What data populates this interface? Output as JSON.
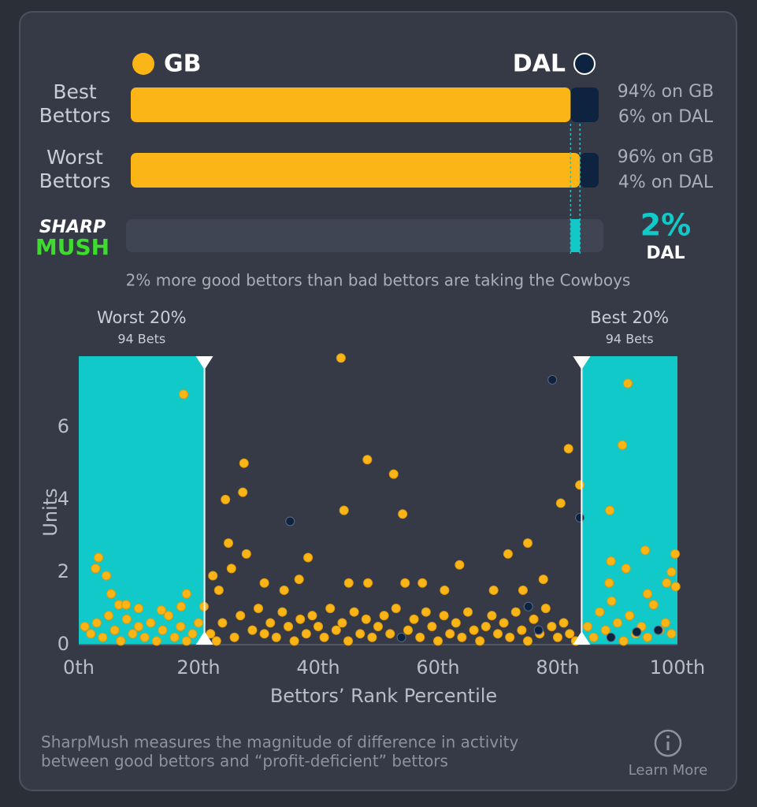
{
  "legend": {
    "left": "GB",
    "right": "DAL",
    "left_color": "#fbb516",
    "right_color": "#0d2340"
  },
  "bars": [
    {
      "label": [
        "Best",
        "Bettors"
      ],
      "values": [
        94,
        6
      ],
      "value_labels": [
        "94% on GB",
        "6% on DAL"
      ]
    },
    {
      "label": [
        "Worst",
        "Bettors"
      ],
      "values": [
        96,
        4
      ],
      "value_labels": [
        "96% on GB",
        "4% on DAL"
      ]
    }
  ],
  "sharpmush": {
    "logo": [
      "SHARP",
      "MUSH"
    ],
    "value": 2,
    "value_label": "2%",
    "team": "DAL",
    "color": "#12c9c9",
    "caption": "2% more good bettors than bad bettors are taking the Cowboys"
  },
  "chart_data": {
    "type": "scatter",
    "xlabel": "Bettors’ Rank Percentile",
    "ylabel": "Units",
    "xlim": [
      0,
      100
    ],
    "ylim": [
      0,
      7.95
    ],
    "xticks": [
      {
        "value": 0,
        "label": "0th"
      },
      {
        "value": 20,
        "label": "20th"
      },
      {
        "value": 40,
        "label": "40th"
      },
      {
        "value": 60,
        "label": "60th"
      },
      {
        "value": 80,
        "label": "80th"
      },
      {
        "value": 100,
        "label": "100th"
      }
    ],
    "yticks": [
      0,
      2,
      4,
      6
    ],
    "regions": [
      {
        "label": "Worst 20%",
        "sublabel": "94 Bets",
        "range": [
          0,
          21
        ],
        "color": "#12c9c9"
      },
      {
        "label": "Best 20%",
        "sublabel": "94 Bets",
        "range": [
          84,
          100
        ],
        "color": "#12c9c9"
      }
    ],
    "series": [
      {
        "name": "GB",
        "color": "#fbb516",
        "x": [
          17.5,
          43.8,
          48.2,
          27.6,
          52.6,
          27.4,
          24.5,
          44.3,
          54.1,
          80.5,
          81.8,
          83.7,
          91.7,
          90.8,
          88.7,
          25,
          75,
          71.7,
          28,
          38.3,
          94.6,
          99.6,
          3.3,
          2.8,
          25.5,
          63.6,
          88.9,
          91.4,
          99,
          4.6,
          22.4,
          18,
          23.4,
          31,
          34.3,
          36.8,
          45.1,
          48.3,
          54.5,
          57.4,
          61.1,
          69.3,
          74.2,
          77.6,
          88.6,
          95,
          98.2,
          99.7,
          5.4,
          6.7,
          7.9,
          10,
          13.8,
          17.1,
          20.9,
          1,
          2,
          3,
          4,
          5,
          6,
          7,
          8,
          9,
          10,
          11,
          12,
          13,
          14,
          15,
          16,
          17,
          18,
          19,
          20,
          22,
          23,
          24,
          26,
          27,
          29,
          30,
          31,
          32,
          33,
          34,
          35,
          36,
          37,
          38,
          39,
          40,
          41,
          42,
          43,
          44,
          45,
          46,
          47,
          48,
          49,
          50,
          51,
          52,
          53,
          55,
          56,
          57,
          58,
          59,
          60,
          61,
          62,
          63,
          64,
          65,
          66,
          67,
          68,
          69,
          70,
          71,
          72,
          73,
          74,
          75,
          76,
          77,
          78,
          79,
          80,
          81,
          82,
          83,
          85,
          86,
          87,
          88,
          89,
          90,
          91,
          92,
          93,
          94,
          95,
          96,
          97,
          98,
          99
        ],
        "values": [
          6.9,
          7.9,
          5.1,
          5.0,
          4.7,
          4.2,
          4.0,
          3.7,
          3.6,
          3.9,
          5.4,
          4.4,
          7.2,
          5.5,
          3.7,
          2.8,
          2.8,
          2.5,
          2.5,
          2.4,
          2.6,
          2.5,
          2.4,
          2.1,
          2.1,
          2.2,
          2.3,
          2.1,
          2.0,
          1.9,
          1.9,
          1.4,
          1.5,
          1.7,
          1.5,
          1.8,
          1.7,
          1.7,
          1.7,
          1.7,
          1.5,
          1.5,
          1.5,
          1.8,
          1.7,
          1.4,
          1.7,
          1.6,
          1.4,
          1.1,
          1.1,
          1.0,
          0.95,
          1.05,
          1.05,
          0.5,
          0.3,
          0.6,
          0.2,
          0.8,
          0.4,
          0.1,
          0.7,
          0.3,
          0.5,
          0.2,
          0.6,
          0.1,
          0.4,
          0.8,
          0.2,
          0.5,
          0.1,
          0.3,
          0.6,
          0.3,
          0.1,
          0.6,
          0.2,
          0.8,
          0.4,
          1.0,
          0.3,
          0.6,
          0.2,
          0.9,
          0.5,
          0.1,
          0.7,
          0.3,
          0.8,
          0.5,
          0.2,
          1.0,
          0.4,
          0.6,
          0.1,
          0.9,
          0.3,
          0.7,
          0.2,
          0.5,
          0.8,
          0.3,
          1.0,
          0.4,
          0.7,
          0.2,
          0.9,
          0.5,
          0.1,
          0.8,
          0.3,
          0.6,
          0.2,
          0.9,
          0.4,
          0.1,
          0.5,
          0.8,
          0.3,
          0.6,
          0.2,
          0.9,
          0.4,
          0.1,
          0.7,
          0.3,
          1.0,
          0.5,
          0.2,
          0.6,
          0.3,
          0.1,
          0.5,
          0.2,
          0.9,
          0.4,
          1.2,
          0.6,
          0.1,
          0.8,
          0.3,
          0.5,
          0.2,
          1.1,
          0.4,
          0.6,
          0.3
        ]
      },
      {
        "name": "DAL",
        "color": "#0d2340",
        "x": [
          79.1,
          35.3,
          83.7,
          75.1,
          76.8,
          88.9,
          96.8,
          53.9,
          93.2
        ],
        "values": [
          7.3,
          3.4,
          3.5,
          1.05,
          0.4,
          0.2,
          0.4,
          0.2,
          0.35
        ]
      }
    ]
  },
  "footer": {
    "text": [
      "SharpMush measures the magnitude of difference in activity",
      "between good bettors and “profit-deficient” bettors"
    ],
    "link": "Learn More"
  }
}
